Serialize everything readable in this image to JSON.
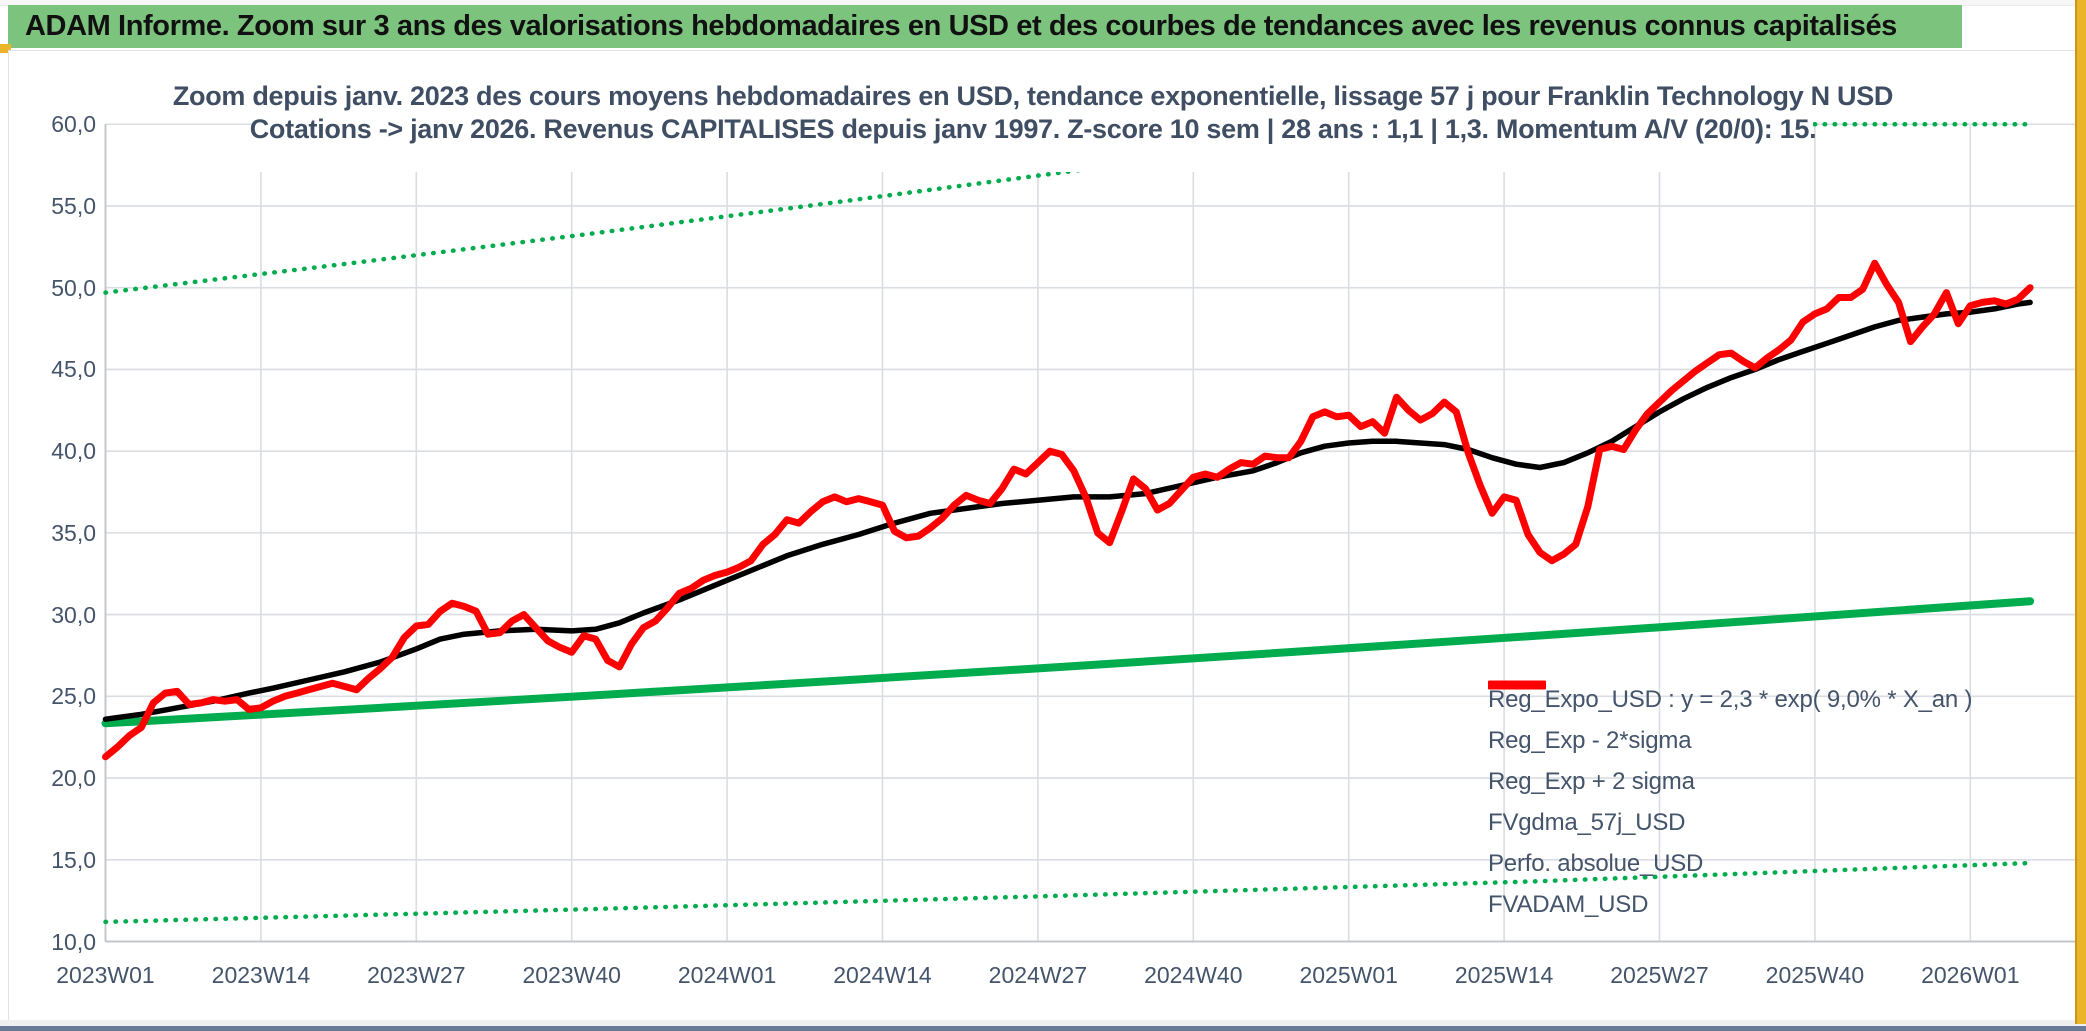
{
  "header": {
    "title": "ADAM Informe. Zoom sur 3 ans des valorisations hebdomadaires en USD et des courbes de tendances avec les revenus connus capitalisés"
  },
  "colors": {
    "banner_green": "#7cc47d",
    "accent_gold": "#eab529",
    "series_green": "#00ac4e",
    "series_red": "#fe0000",
    "series_black": "#000000",
    "text_blue_gray": "#44546a",
    "gridline": "#dadde2"
  },
  "chart_data": {
    "type": "line",
    "title_line1": "Zoom depuis janv. 2023 des cours moyens hebdomadaires en USD, tendance exponentielle, lissage 57 j pour Franklin Technology N USD",
    "title_line2": "Cotations -> janv 2026. Revenus CAPITALISES depuis janv 1997. Z-score 10 sem | 28 ans : 1,1 | 1,3. Momentum A/V (20/0): 15.",
    "y_axis": {
      "min": 10,
      "max": 60,
      "step": 5,
      "tick_labels": [
        "60,0",
        "55,0",
        "50,0",
        "45,0",
        "40,0",
        "35,0",
        "30,0",
        "25,0",
        "20,0",
        "15,0",
        "10,0"
      ]
    },
    "x_axis": {
      "weeks_per_tick": 13,
      "tick_labels": [
        "2023W01",
        "2023W14",
        "2023W27",
        "2023W40",
        "2024W01",
        "2024W14",
        "2024W27",
        "2024W40",
        "2025W01",
        "2025W14",
        "2025W27",
        "2025W40",
        "2026W01"
      ]
    },
    "grid": true,
    "legend_position": "inside-bottom-right",
    "series": [
      {
        "name": "Reg_Expo_USD : y = 2,3 * exp( 9,0% *  X_an )",
        "color": "#00ac4e",
        "style": "solid",
        "width": 8,
        "points": [
          [
            0,
            23.35
          ],
          [
            20,
            24.17
          ],
          [
            40,
            25.02
          ],
          [
            60,
            25.9
          ],
          [
            80,
            26.8
          ],
          [
            100,
            27.75
          ],
          [
            120,
            28.72
          ],
          [
            140,
            29.73
          ],
          [
            161,
            30.82
          ]
        ]
      },
      {
        "name": "Reg_Exp - 2*sigma",
        "color": "#00ac4e",
        "style": "dotted",
        "width": 4.5,
        "points": [
          [
            0,
            11.2
          ],
          [
            40,
            11.97
          ],
          [
            80,
            12.8
          ],
          [
            120,
            13.69
          ],
          [
            161,
            14.8
          ]
        ]
      },
      {
        "name": "Reg_Exp + 2 sigma",
        "color": "#00ac4e",
        "style": "dotted",
        "width": 4.5,
        "points": [
          [
            0,
            49.7
          ],
          [
            20,
            51.45
          ],
          [
            40,
            53.25
          ],
          [
            60,
            55.12
          ],
          [
            80,
            57.05
          ],
          [
            100,
            59.05
          ],
          [
            109,
            60
          ],
          [
            161,
            60
          ]
        ]
      },
      {
        "name": "FVgdma_57j_USD",
        "color": "#000000",
        "style": "solid",
        "width": 5.5,
        "points": [
          [
            0,
            23.6
          ],
          [
            3,
            23.9
          ],
          [
            6,
            24.3
          ],
          [
            9,
            24.7
          ],
          [
            12,
            25.2
          ],
          [
            14,
            25.5
          ],
          [
            17,
            26.0
          ],
          [
            20,
            26.5
          ],
          [
            23,
            27.1
          ],
          [
            26,
            27.9
          ],
          [
            28,
            28.5
          ],
          [
            30,
            28.8
          ],
          [
            33,
            29.0
          ],
          [
            36,
            29.1
          ],
          [
            39,
            29.0
          ],
          [
            41,
            29.1
          ],
          [
            43,
            29.5
          ],
          [
            45,
            30.1
          ],
          [
            48,
            30.9
          ],
          [
            51,
            31.8
          ],
          [
            54,
            32.7
          ],
          [
            57,
            33.6
          ],
          [
            60,
            34.3
          ],
          [
            63,
            34.9
          ],
          [
            66,
            35.6
          ],
          [
            69,
            36.2
          ],
          [
            72,
            36.5
          ],
          [
            75,
            36.8
          ],
          [
            78,
            37.0
          ],
          [
            81,
            37.2
          ],
          [
            84,
            37.2
          ],
          [
            87,
            37.4
          ],
          [
            90,
            37.9
          ],
          [
            93,
            38.4
          ],
          [
            96,
            38.8
          ],
          [
            98,
            39.3
          ],
          [
            100,
            39.9
          ],
          [
            102,
            40.3
          ],
          [
            104,
            40.5
          ],
          [
            106,
            40.6
          ],
          [
            108,
            40.6
          ],
          [
            110,
            40.5
          ],
          [
            112,
            40.4
          ],
          [
            114,
            40.1
          ],
          [
            116,
            39.6
          ],
          [
            118,
            39.2
          ],
          [
            120,
            39.0
          ],
          [
            122,
            39.3
          ],
          [
            124,
            39.9
          ],
          [
            126,
            40.6
          ],
          [
            128,
            41.5
          ],
          [
            130,
            42.4
          ],
          [
            132,
            43.2
          ],
          [
            134,
            43.9
          ],
          [
            136,
            44.5
          ],
          [
            138,
            45.0
          ],
          [
            140,
            45.6
          ],
          [
            142,
            46.1
          ],
          [
            144,
            46.6
          ],
          [
            146,
            47.1
          ],
          [
            148,
            47.6
          ],
          [
            150,
            48.0
          ],
          [
            152,
            48.2
          ],
          [
            154,
            48.4
          ],
          [
            156,
            48.5
          ],
          [
            158,
            48.7
          ],
          [
            160,
            49.0
          ],
          [
            161,
            49.1
          ]
        ]
      },
      {
        "name": "Perfo. absolue_USD",
        "color": "#fe0000",
        "style": "dotted-fine",
        "width": 3.5,
        "points": [],
        "note": "hidden behind FVADAM_USD in plot"
      },
      {
        "name": "FVADAM_USD",
        "color": "#fe0000",
        "style": "solid",
        "width": 7,
        "start_week": 0,
        "values": [
          21.3,
          21.9,
          22.6,
          23.1,
          24.6,
          25.2,
          25.3,
          24.5,
          24.6,
          24.8,
          24.7,
          24.8,
          24.2,
          24.3,
          24.7,
          25.0,
          25.2,
          25.4,
          25.6,
          25.8,
          25.6,
          25.4,
          26.1,
          26.7,
          27.4,
          28.6,
          29.3,
          29.4,
          30.2,
          30.7,
          30.5,
          30.2,
          28.8,
          28.9,
          29.6,
          30.0,
          29.2,
          28.4,
          28.0,
          27.7,
          28.7,
          28.5,
          27.2,
          26.8,
          28.2,
          29.2,
          29.6,
          30.4,
          31.3,
          31.6,
          32.1,
          32.4,
          32.6,
          32.9,
          33.3,
          34.3,
          34.9,
          35.8,
          35.6,
          36.3,
          36.9,
          37.2,
          36.9,
          37.1,
          36.9,
          36.7,
          35.1,
          34.7,
          34.8,
          35.3,
          35.9,
          36.7,
          37.3,
          37.0,
          36.8,
          37.7,
          38.9,
          38.6,
          39.3,
          40.0,
          39.8,
          38.8,
          37.2,
          35.0,
          34.4,
          36.3,
          38.3,
          37.7,
          36.4,
          36.8,
          37.6,
          38.4,
          38.6,
          38.4,
          38.9,
          39.3,
          39.2,
          39.7,
          39.6,
          39.6,
          40.6,
          42.1,
          42.4,
          42.1,
          42.2,
          41.5,
          41.8,
          41.1,
          43.3,
          42.5,
          41.9,
          42.3,
          43.0,
          42.4,
          39.9,
          37.9,
          36.2,
          37.2,
          37.0,
          34.9,
          33.8,
          33.3,
          33.7,
          34.3,
          36.6,
          40.1,
          40.3,
          40.1,
          41.3,
          42.3,
          43.0,
          43.7,
          44.3,
          44.9,
          45.4,
          45.9,
          46.0,
          45.5,
          45.1,
          45.7,
          46.2,
          46.8,
          47.9,
          48.4,
          48.7,
          49.4,
          49.4,
          49.9,
          51.5,
          50.2,
          49.1,
          46.7,
          47.6,
          48.4,
          49.7,
          47.8,
          48.9,
          49.1,
          49.2,
          49.0,
          49.3,
          50.0
        ]
      }
    ]
  },
  "legend": {
    "entries": [
      {
        "label": "Reg_Expo_USD : y = 2,3 * exp( 9,0% *  X_an )",
        "color": "#00ac4e",
        "style": "solid-thick"
      },
      {
        "label": "Reg_Exp - 2*sigma",
        "color": "#00ac4e",
        "style": "dotted"
      },
      {
        "label": "Reg_Exp + 2 sigma",
        "color": "#00ac4e",
        "style": "dotted"
      },
      {
        "label": "FVgdma_57j_USD",
        "color": "#000000",
        "style": "solid"
      },
      {
        "label": "Perfo. absolue_USD",
        "color": "#fe0000",
        "style": "dotted-fine"
      },
      {
        "label": "FVADAM_USD",
        "color": "#fe0000",
        "style": "solid-thick"
      }
    ]
  }
}
